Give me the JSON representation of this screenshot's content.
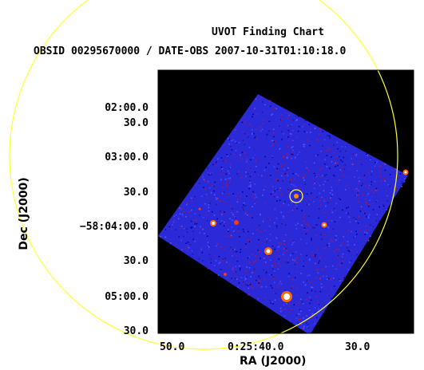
{
  "title": "UVOT Finding Chart",
  "subtitle": "OBSID 00295670000 / DATE-OBS 2007-10-31T01:10:18.0",
  "y_axis": {
    "label": "Dec (J2000)",
    "ticks": [
      "02:00.0",
      "30.0",
      "03:00.0",
      "30.0",
      "−58:04:00.0",
      "30.0",
      "05:00.0",
      "30.0"
    ]
  },
  "x_axis": {
    "label": "RA (J2000)",
    "ticks": [
      "50.0",
      "0:25:40.0",
      "30.0"
    ]
  },
  "colors": {
    "background": "#000000",
    "sky": "#2a2ad8",
    "circle": "#ffff33",
    "frame": "#000000"
  }
}
